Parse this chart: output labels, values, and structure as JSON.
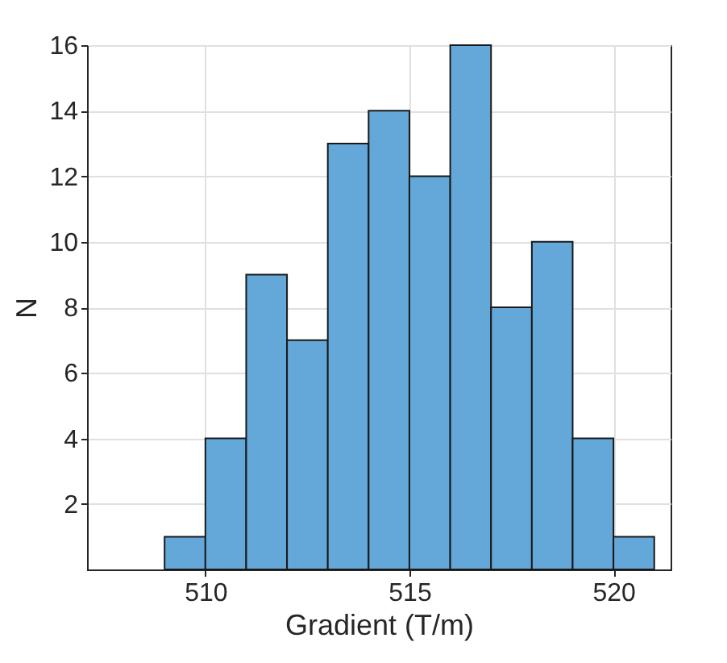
{
  "chart_data": {
    "type": "histogram",
    "xlabel": "Gradient (T/m)",
    "ylabel": "N",
    "bins": [
      509,
      510,
      511,
      512,
      513,
      514,
      515,
      516,
      517,
      518,
      519,
      520,
      521
    ],
    "values": [
      1,
      4,
      9,
      7,
      13,
      14,
      12,
      16,
      8,
      10,
      4,
      1
    ],
    "color": "#64a8da",
    "xlim": [
      507.1,
      521.4
    ],
    "xticks": [
      510,
      515,
      520
    ],
    "ylim": [
      0,
      16
    ],
    "yticks": [
      2,
      4,
      6,
      8,
      10,
      12,
      14,
      16
    ],
    "grid": true
  }
}
